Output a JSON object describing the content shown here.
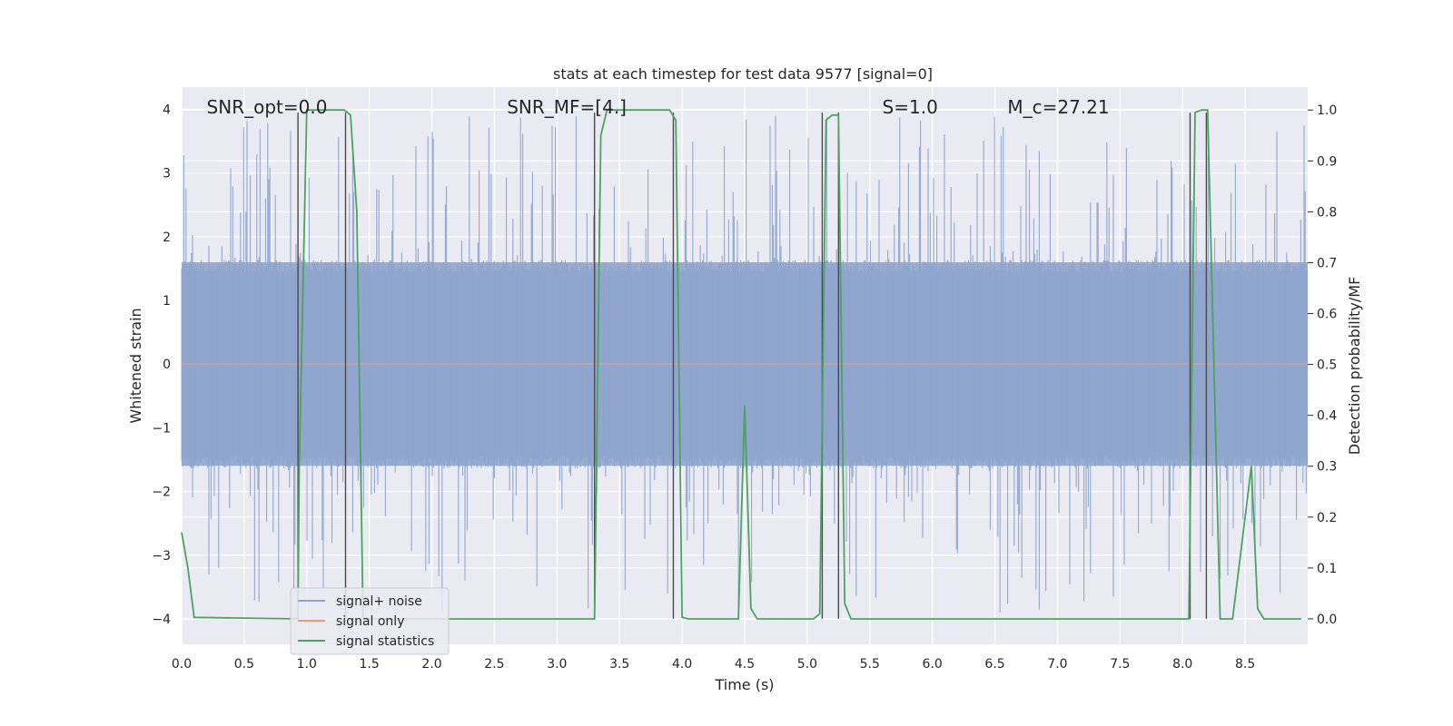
{
  "chart_data": {
    "type": "line",
    "title": "stats at each timestep for test data 9577 [signal=0]",
    "xlabel": "Time (s)",
    "ylabel": "Whitened strain",
    "ylabel_right": "Detection probability/MF",
    "xlim": [
      0,
      9.0
    ],
    "ylim": [
      -4.4,
      4.35
    ],
    "ylim_right": [
      -0.05,
      1.045
    ],
    "x_ticks": [
      0.0,
      0.5,
      1.0,
      1.5,
      2.0,
      2.5,
      3.0,
      3.5,
      4.0,
      4.5,
      5.0,
      5.5,
      6.0,
      6.5,
      7.0,
      7.5,
      8.0,
      8.5
    ],
    "x_tick_labels": [
      "0.0",
      "0.5",
      "1.0",
      "1.5",
      "2.0",
      "2.5",
      "3.0",
      "3.5",
      "4.0",
      "4.5",
      "5.0",
      "5.5",
      "6.0",
      "6.5",
      "7.0",
      "7.5",
      "8.0",
      "8.5"
    ],
    "y_ticks": [
      4,
      3,
      2,
      1,
      0,
      -1,
      -2,
      -3,
      -4
    ],
    "y_tick_labels": [
      "4",
      "3",
      "2",
      "1",
      "0",
      "−1",
      "−2",
      "−3",
      "−4"
    ],
    "y_right_ticks": [
      1.0,
      0.9,
      0.8,
      0.7,
      0.6,
      0.5,
      0.4,
      0.3,
      0.2,
      0.1,
      0.0
    ],
    "y_right_tick_labels": [
      "1.0",
      "0.9",
      "0.8",
      "0.7",
      "0.6",
      "0.5",
      "0.4",
      "0.3",
      "0.2",
      "0.1",
      "0.0"
    ],
    "annotations": [
      {
        "text": "SNR_opt=0.0",
        "x": 0.2
      },
      {
        "text": "SNR_MF=[4.]",
        "x": 2.6
      },
      {
        "text": "S=1.0",
        "x": 5.6
      },
      {
        "text": "M_c=27.21",
        "x": 6.6
      }
    ],
    "legend": {
      "placement": "lower-left",
      "entries": [
        "signal+ noise",
        "signal only",
        "signal statistics"
      ]
    },
    "colors": {
      "noise": "#8fa4cc",
      "signal_only": "#e69a7a",
      "statistics": "#4aa45e",
      "markers": "#4a4a4a",
      "axes_bg": "#eaeaf2",
      "grid": "#ffffff"
    },
    "series": [
      {
        "name": "signal+ noise",
        "kind": "noise",
        "amplitude_core": 1.6,
        "amplitude_peak": 3.9
      },
      {
        "name": "signal only",
        "values_constant": 0.0
      },
      {
        "name": "signal statistics",
        "axis": "right",
        "x": [
          0.0,
          0.05,
          0.1,
          0.93,
          0.94,
          1.0,
          1.05,
          1.3,
          1.35,
          1.4,
          1.45,
          3.3,
          3.35,
          3.4,
          3.45,
          3.5,
          3.55,
          3.6,
          3.9,
          3.95,
          4.0,
          4.05,
          4.35,
          4.4,
          4.45,
          4.5,
          4.55,
          4.6,
          5.05,
          5.1,
          5.15,
          5.2,
          5.25,
          5.3,
          5.35,
          5.4,
          8.05,
          8.1,
          8.15,
          8.2,
          8.25,
          8.3,
          8.35,
          8.4,
          8.45,
          8.5,
          8.55,
          8.6,
          8.65,
          8.7,
          8.75,
          8.95
        ],
        "values": [
          0.17,
          0.1,
          0.003,
          0.0,
          0.3,
          1.0,
          1.0,
          1.0,
          0.99,
          0.8,
          0.0,
          0.0,
          0.95,
          1.0,
          1.0,
          1.0,
          1.0,
          1.0,
          1.0,
          0.98,
          0.003,
          0.0,
          0.0,
          0.0,
          0.0,
          0.42,
          0.02,
          0.0,
          0.0,
          0.01,
          0.98,
          0.99,
          0.99,
          0.03,
          0.0,
          0.0,
          0.0,
          0.995,
          1.0,
          1.0,
          0.5,
          0.0,
          0.0,
          0.0,
          0.1,
          0.2,
          0.3,
          0.02,
          0.0,
          0.0,
          0.0,
          0.0
        ]
      }
    ],
    "marker_lines_x": [
      0.93,
      1.31,
      3.3,
      3.93,
      5.12,
      5.25,
      8.06,
      8.19
    ]
  }
}
